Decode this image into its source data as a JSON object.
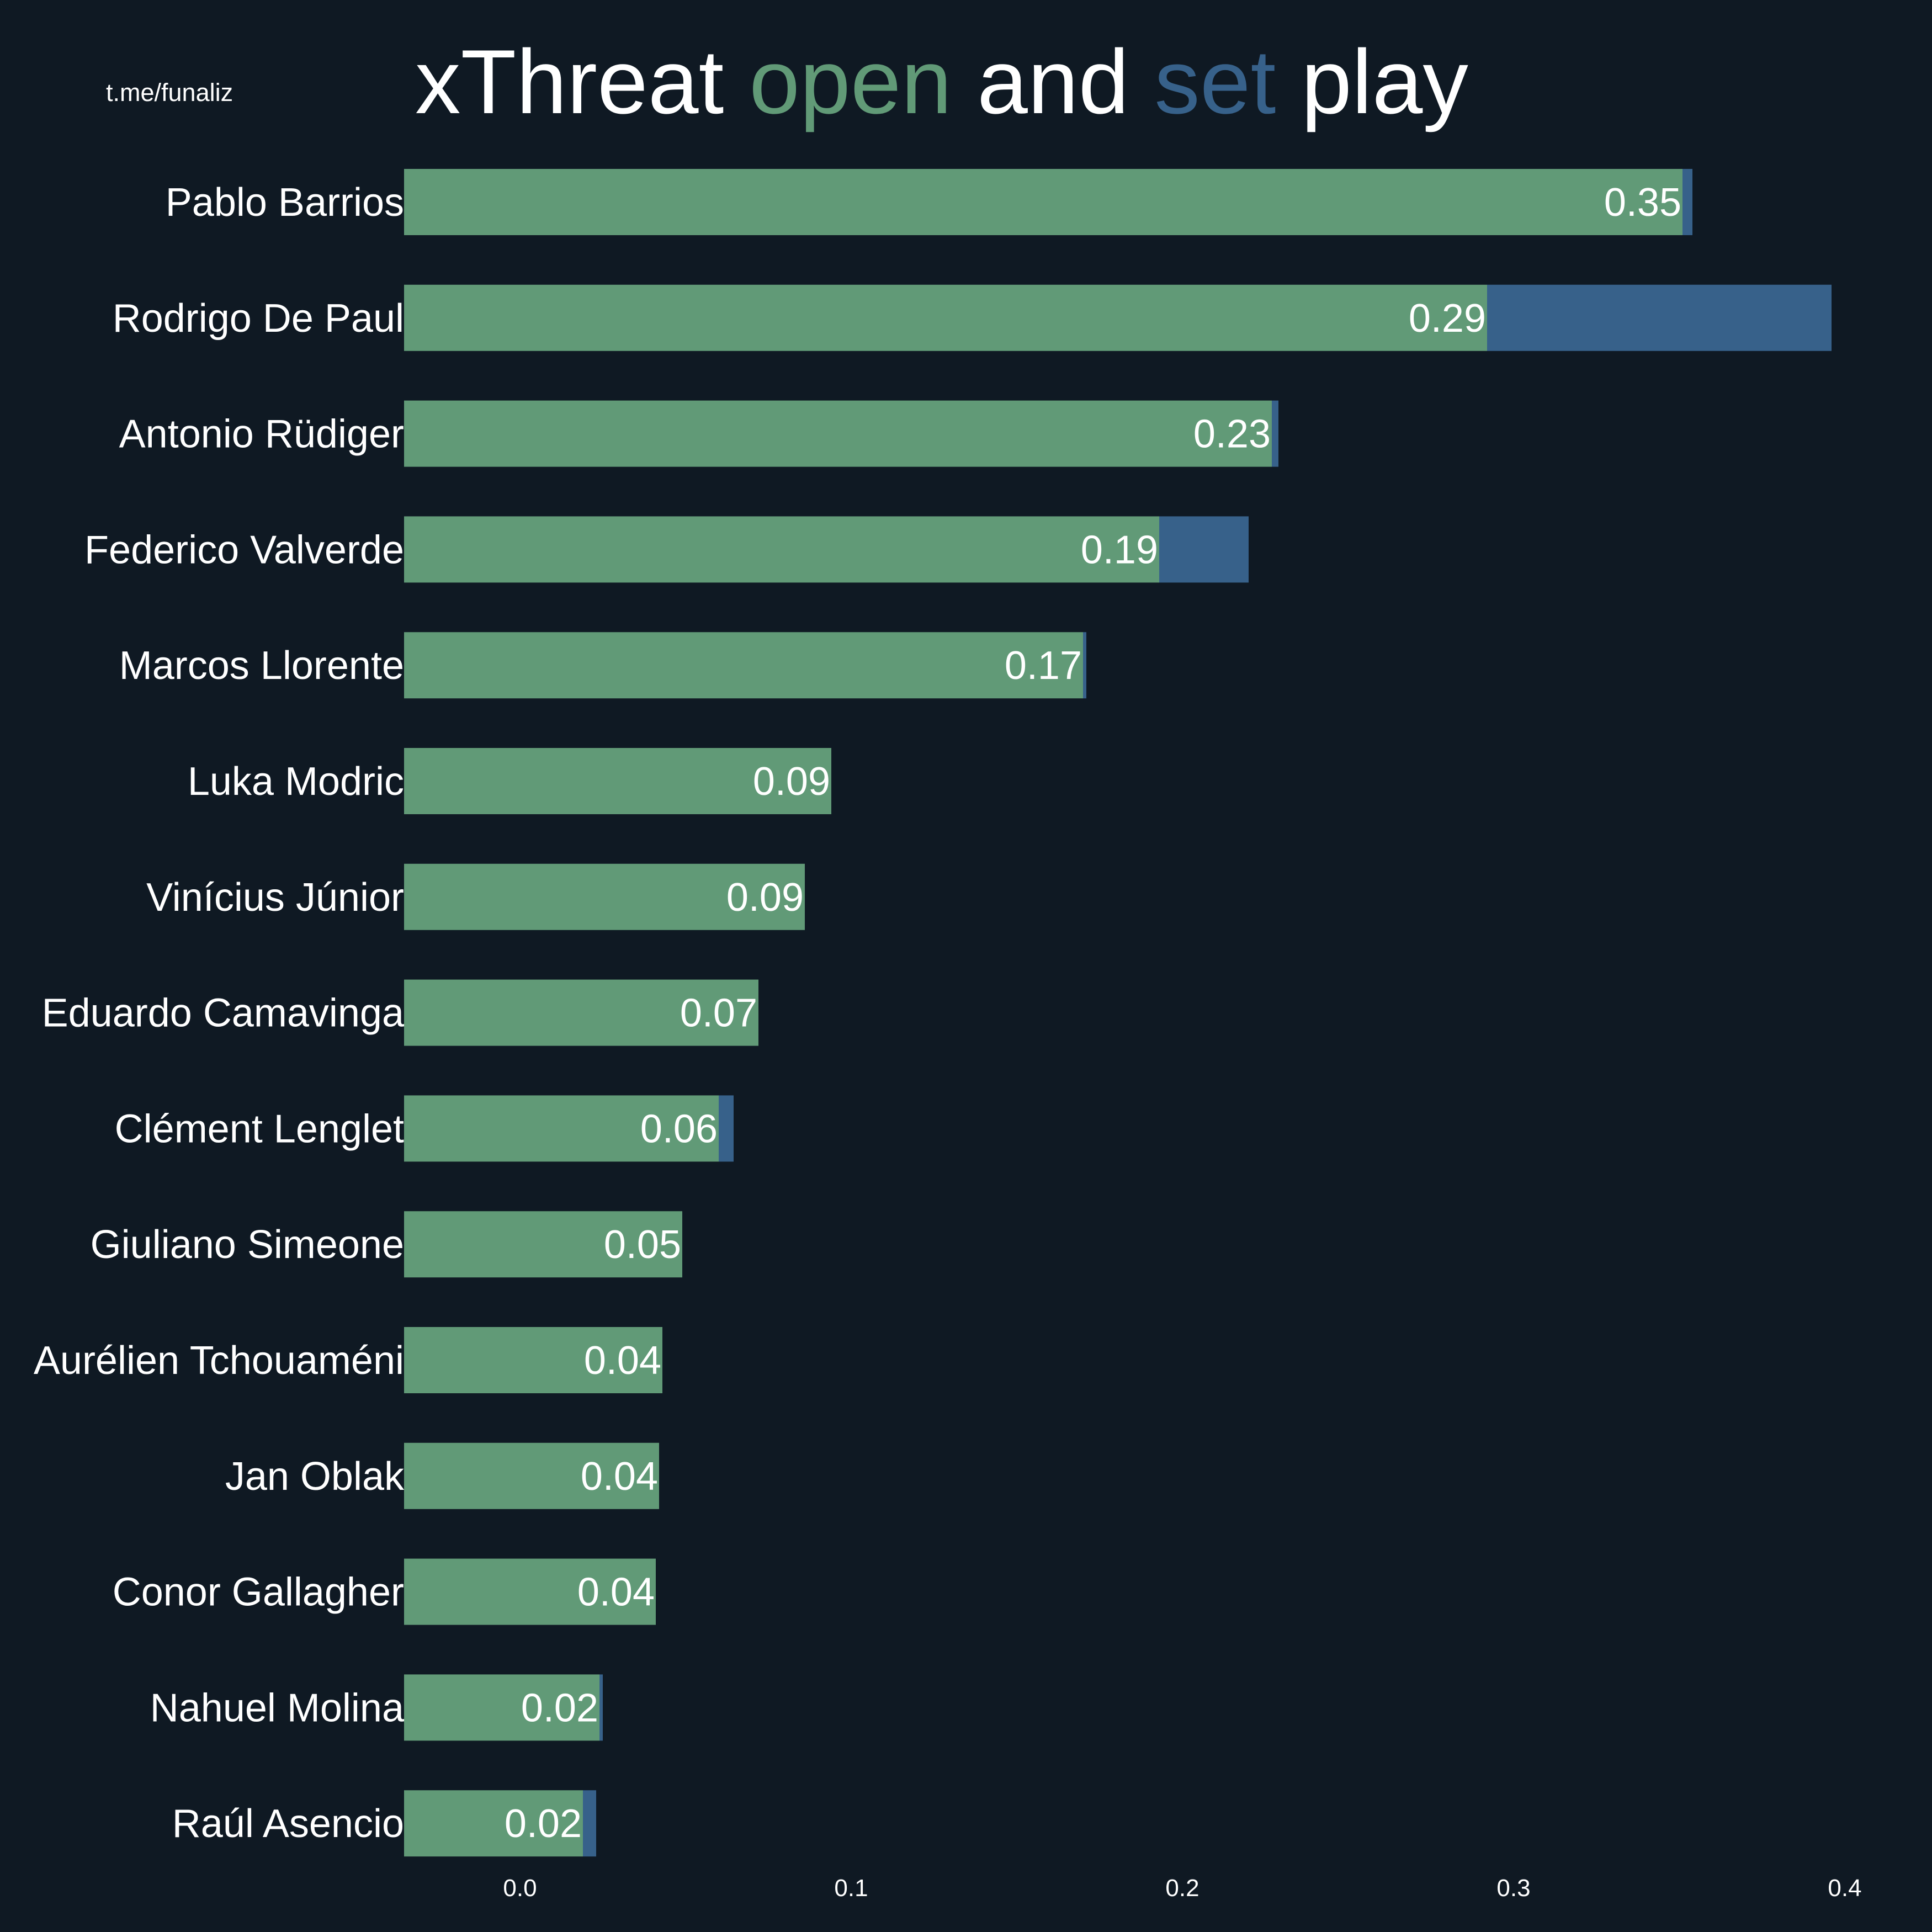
{
  "chart_data": {
    "type": "barh_stacked",
    "title_parts": [
      "xThreat",
      "and",
      "play"
    ],
    "watermark": "t.me/funaliz",
    "categories": [
      "Pablo Barrios",
      "Rodrigo De Paul",
      "Antonio Rüdiger",
      "Federico Valverde",
      "Marcos Llorente",
      "Luka Modric",
      "Vinícius Júnior",
      "Eduardo Camavinga",
      "Clément Lenglet",
      "Giuliano Simeone",
      "Aurélien Tchouaméni",
      "Jan Oblak",
      "Conor Gallagher",
      "Nahuel Molina",
      "Raúl Asencio"
    ],
    "series": [
      {
        "name": "open",
        "color": "#619a77",
        "values": [
          0.351,
          0.292,
          0.227,
          0.193,
          0.17,
          0.094,
          0.086,
          0.072,
          0.06,
          0.049,
          0.043,
          0.042,
          0.041,
          0.024,
          0.019
        ],
        "value_labels": [
          "0.35",
          "0.29",
          "0.23",
          "0.19",
          "0.17",
          "0.09",
          "0.09",
          "0.07",
          "0.06",
          "0.05",
          "0.04",
          "0.04",
          "0.04",
          "0.02",
          "0.02"
        ]
      },
      {
        "name": "set",
        "color": "#37618a",
        "values": [
          0.003,
          0.104,
          0.002,
          0.027,
          0.001,
          0,
          0,
          0,
          0.0045,
          0,
          0,
          0,
          0,
          0.001,
          0.004
        ]
      }
    ],
    "xlim": [
      -0.035,
      0.42
    ],
    "xticks": [
      {
        "value": 0,
        "label": "0.0"
      },
      0.1,
      0.2,
      0.3,
      0.4
    ]
  }
}
